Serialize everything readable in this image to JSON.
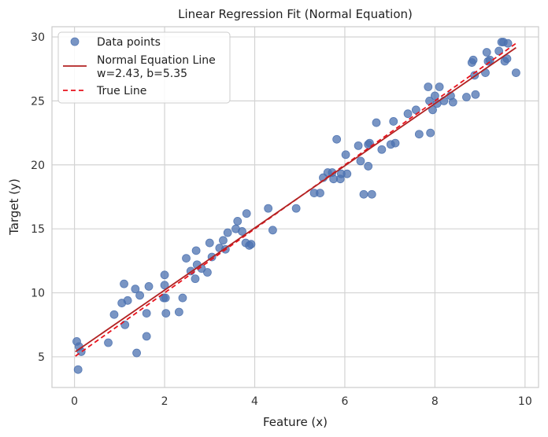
{
  "chart_data": {
    "type": "scatter",
    "title": "Linear Regression Fit (Normal Equation)",
    "xlabel": "Feature (x)",
    "ylabel": "Target (y)",
    "xlim": [
      -0.5,
      10.3
    ],
    "ylim": [
      2.6,
      30.8
    ],
    "xticks": [
      0,
      2,
      4,
      6,
      8,
      10
    ],
    "yticks": [
      5,
      10,
      15,
      20,
      25,
      30
    ],
    "grid": true,
    "legend_position": "top-left",
    "legend": {
      "scatter_label": "Data points",
      "fit_label_line1": "Normal Equation Line",
      "fit_label_line2": "w=2.43, b=5.35",
      "true_label": "True Line"
    },
    "colors": {
      "points": "#4c72b0",
      "fit_line": "#b22222",
      "true_line": "#e8121c",
      "grid": "#d3d3d3",
      "frame": "#cccccc"
    },
    "fit_line": {
      "w": 2.43,
      "b": 5.35,
      "x_range": [
        0.02,
        9.8
      ]
    },
    "true_line": {
      "w": 2.5,
      "b": 5.0,
      "x_range": [
        0.02,
        9.8
      ]
    },
    "points": [
      {
        "x": 0.05,
        "y": 6.2
      },
      {
        "x": 0.08,
        "y": 4.0
      },
      {
        "x": 0.1,
        "y": 5.8
      },
      {
        "x": 0.15,
        "y": 5.4
      },
      {
        "x": 0.75,
        "y": 6.1
      },
      {
        "x": 0.88,
        "y": 8.3
      },
      {
        "x": 1.05,
        "y": 9.2
      },
      {
        "x": 1.1,
        "y": 10.7
      },
      {
        "x": 1.12,
        "y": 7.5
      },
      {
        "x": 1.18,
        "y": 9.4
      },
      {
        "x": 1.35,
        "y": 10.3
      },
      {
        "x": 1.38,
        "y": 5.3
      },
      {
        "x": 1.45,
        "y": 9.8
      },
      {
        "x": 1.6,
        "y": 8.4
      },
      {
        "x": 1.6,
        "y": 6.6
      },
      {
        "x": 1.65,
        "y": 10.5
      },
      {
        "x": 1.98,
        "y": 9.6
      },
      {
        "x": 2.0,
        "y": 10.6
      },
      {
        "x": 2.0,
        "y": 11.4
      },
      {
        "x": 2.02,
        "y": 9.6
      },
      {
        "x": 2.03,
        "y": 8.4
      },
      {
        "x": 2.32,
        "y": 8.5
      },
      {
        "x": 2.4,
        "y": 9.6
      },
      {
        "x": 2.48,
        "y": 12.7
      },
      {
        "x": 2.58,
        "y": 11.7
      },
      {
        "x": 2.68,
        "y": 11.1
      },
      {
        "x": 2.7,
        "y": 13.3
      },
      {
        "x": 2.72,
        "y": 12.2
      },
      {
        "x": 2.82,
        "y": 11.9
      },
      {
        "x": 2.95,
        "y": 11.6
      },
      {
        "x": 3.0,
        "y": 13.9
      },
      {
        "x": 3.05,
        "y": 12.8
      },
      {
        "x": 3.22,
        "y": 13.5
      },
      {
        "x": 3.3,
        "y": 14.1
      },
      {
        "x": 3.35,
        "y": 13.4
      },
      {
        "x": 3.4,
        "y": 14.7
      },
      {
        "x": 3.58,
        "y": 15.0
      },
      {
        "x": 3.62,
        "y": 15.6
      },
      {
        "x": 3.72,
        "y": 14.8
      },
      {
        "x": 3.8,
        "y": 13.9
      },
      {
        "x": 3.82,
        "y": 16.2
      },
      {
        "x": 3.88,
        "y": 13.7
      },
      {
        "x": 3.92,
        "y": 13.8
      },
      {
        "x": 4.3,
        "y": 16.6
      },
      {
        "x": 4.4,
        "y": 14.9
      },
      {
        "x": 4.92,
        "y": 16.6
      },
      {
        "x": 5.32,
        "y": 17.8
      },
      {
        "x": 5.45,
        "y": 17.8
      },
      {
        "x": 5.52,
        "y": 19.0
      },
      {
        "x": 5.62,
        "y": 19.4
      },
      {
        "x": 5.72,
        "y": 19.4
      },
      {
        "x": 5.75,
        "y": 18.9
      },
      {
        "x": 5.82,
        "y": 22.0
      },
      {
        "x": 5.9,
        "y": 18.9
      },
      {
        "x": 5.92,
        "y": 19.3
      },
      {
        "x": 6.02,
        "y": 20.8
      },
      {
        "x": 6.05,
        "y": 19.3
      },
      {
        "x": 6.3,
        "y": 21.5
      },
      {
        "x": 6.35,
        "y": 20.3
      },
      {
        "x": 6.42,
        "y": 17.7
      },
      {
        "x": 6.52,
        "y": 21.6
      },
      {
        "x": 6.55,
        "y": 21.7
      },
      {
        "x": 6.52,
        "y": 19.9
      },
      {
        "x": 6.6,
        "y": 17.7
      },
      {
        "x": 6.7,
        "y": 23.3
      },
      {
        "x": 6.82,
        "y": 21.2
      },
      {
        "x": 7.02,
        "y": 21.6
      },
      {
        "x": 7.08,
        "y": 23.4
      },
      {
        "x": 7.12,
        "y": 21.7
      },
      {
        "x": 7.4,
        "y": 24.0
      },
      {
        "x": 7.58,
        "y": 24.3
      },
      {
        "x": 7.65,
        "y": 22.4
      },
      {
        "x": 7.85,
        "y": 26.1
      },
      {
        "x": 7.88,
        "y": 25.0
      },
      {
        "x": 7.9,
        "y": 22.5
      },
      {
        "x": 7.95,
        "y": 24.3
      },
      {
        "x": 8.0,
        "y": 25.4
      },
      {
        "x": 8.05,
        "y": 24.8
      },
      {
        "x": 8.1,
        "y": 26.1
      },
      {
        "x": 8.2,
        "y": 25.0
      },
      {
        "x": 8.35,
        "y": 25.4
      },
      {
        "x": 8.4,
        "y": 24.9
      },
      {
        "x": 8.7,
        "y": 25.3
      },
      {
        "x": 8.82,
        "y": 28.0
      },
      {
        "x": 8.85,
        "y": 28.2
      },
      {
        "x": 8.88,
        "y": 27.0
      },
      {
        "x": 8.9,
        "y": 25.5
      },
      {
        "x": 9.12,
        "y": 27.2
      },
      {
        "x": 9.15,
        "y": 28.8
      },
      {
        "x": 9.18,
        "y": 28.1
      },
      {
        "x": 9.22,
        "y": 28.2
      },
      {
        "x": 9.42,
        "y": 28.9
      },
      {
        "x": 9.48,
        "y": 29.6
      },
      {
        "x": 9.52,
        "y": 29.6
      },
      {
        "x": 9.55,
        "y": 28.1
      },
      {
        "x": 9.6,
        "y": 28.3
      },
      {
        "x": 9.62,
        "y": 29.5
      },
      {
        "x": 9.8,
        "y": 27.2
      }
    ]
  }
}
